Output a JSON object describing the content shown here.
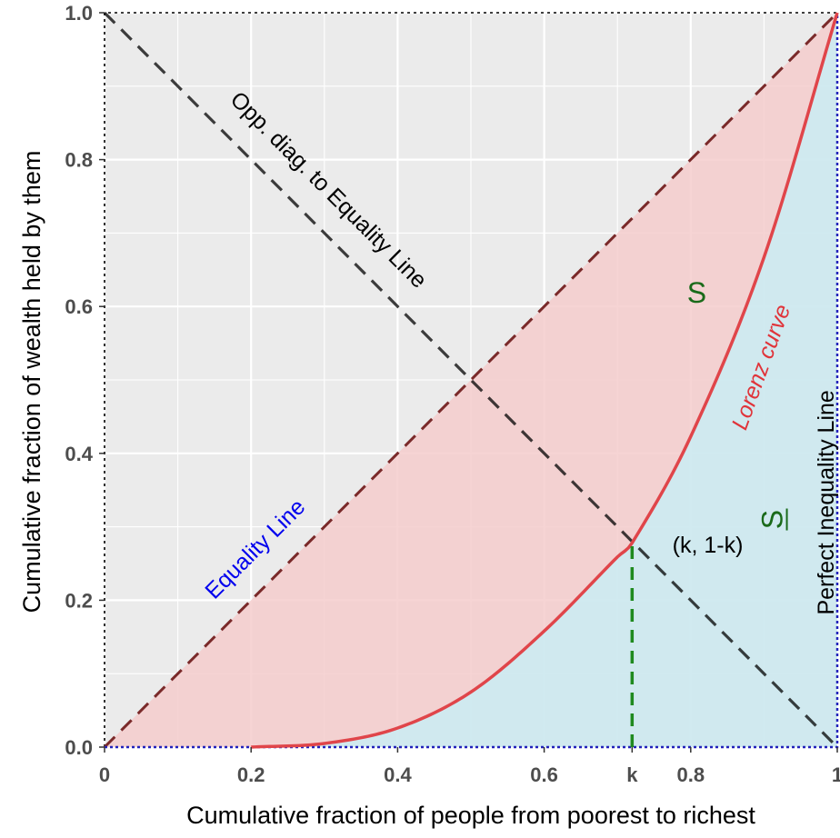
{
  "chart_data": {
    "type": "line",
    "xlabel": "Cumulative fraction of people from poorest to richest",
    "ylabel": "Cumulative fraction of wealth held by them",
    "xlim": [
      0,
      1
    ],
    "ylim": [
      0,
      1
    ],
    "grid": true,
    "x_ticks": [
      {
        "value": 0,
        "label": "0"
      },
      {
        "value": 0.2,
        "label": "0.2"
      },
      {
        "value": 0.4,
        "label": "0.4"
      },
      {
        "value": 0.6,
        "label": "0.6"
      },
      {
        "value": 0.72,
        "label": "k"
      },
      {
        "value": 0.8,
        "label": "0.8"
      },
      {
        "value": 1,
        "label": "1"
      }
    ],
    "y_ticks": [
      {
        "value": 0,
        "label": "0.0"
      },
      {
        "value": 0.2,
        "label": "0.2"
      },
      {
        "value": 0.4,
        "label": "0.4"
      },
      {
        "value": 0.6,
        "label": "0.6"
      },
      {
        "value": 0.8,
        "label": "0.8"
      },
      {
        "value": 1,
        "label": "1.0"
      }
    ],
    "series": [
      {
        "name": "Equality Line",
        "color": "#7a2a2a",
        "style": "dashed",
        "points": [
          [
            0,
            0
          ],
          [
            1,
            1
          ]
        ]
      },
      {
        "name": "Opp. diag. to Equality Line",
        "color": "#000000",
        "style": "dashed",
        "points": [
          [
            0,
            1
          ],
          [
            1,
            0
          ]
        ]
      },
      {
        "name": "Lorenz curve",
        "color": "#e0454a",
        "style": "solid",
        "x_start": 0.2,
        "points": [
          [
            0.2,
            0
          ],
          [
            0.3,
            0.005
          ],
          [
            0.4,
            0.026
          ],
          [
            0.5,
            0.075
          ],
          [
            0.6,
            0.158
          ],
          [
            0.7,
            0.259
          ],
          [
            0.72,
            0.278
          ],
          [
            0.8,
            0.423
          ],
          [
            0.9,
            0.667
          ],
          [
            1,
            1
          ]
        ]
      },
      {
        "name": "Perfect Inequality Line",
        "color": "#2222bb",
        "style": "dotted",
        "points": [
          [
            0,
            0
          ],
          [
            1,
            0
          ],
          [
            1,
            1
          ]
        ]
      }
    ],
    "k_point": {
      "x": 0.72,
      "y": 0.278,
      "label": "(k, 1-k)",
      "color": "#1f8a1f"
    },
    "regions": [
      {
        "name": "S",
        "color": "#f4cccc"
      },
      {
        "name": "S-bar",
        "color": "#cfe9ef"
      }
    ],
    "annotations": [
      {
        "text": "Opp. diag. to Equality Line",
        "color": "#000000"
      },
      {
        "text": "Equality Line",
        "color": "#0000ee"
      },
      {
        "text": "Lorenz curve",
        "color": "#e0343a"
      },
      {
        "text": "Perfect Inequality Line",
        "color": "#000000"
      },
      {
        "text": "S",
        "color": "#1a6a1a"
      },
      {
        "text": "S",
        "color": "#1a6a1a",
        "overbar": true
      }
    ],
    "colors": {
      "panel_bg": "#ebebeb",
      "grid": "#ffffff",
      "tick_text": "#4d4d4d"
    }
  }
}
